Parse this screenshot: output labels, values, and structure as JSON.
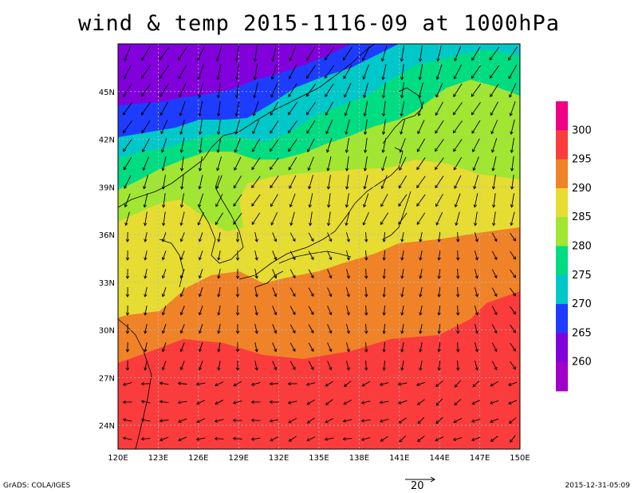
{
  "title": "wind & temp 2015-1116-09 at 1000hPa",
  "map": {
    "lon_range": [
      120,
      150
    ],
    "lat_range": [
      22.5,
      48
    ],
    "lon_ticks": [
      "120E",
      "123E",
      "126E",
      "129E",
      "132E",
      "135E",
      "138E",
      "141E",
      "144E",
      "147E",
      "150E"
    ],
    "lat_ticks": [
      "24N",
      "27N",
      "30N",
      "33N",
      "36N",
      "39N",
      "42N",
      "45N"
    ],
    "grid": "dotted"
  },
  "colorbar": {
    "levels": [
      "260",
      "265",
      "270",
      "275",
      "280",
      "285",
      "290",
      "295",
      "300"
    ],
    "colors": [
      "#a000c8",
      "#8200dc",
      "#1e3cff",
      "#00c8c8",
      "#00dc82",
      "#a0e632",
      "#e6dc32",
      "#f08228",
      "#fa3c3c",
      "#f00082"
    ]
  },
  "reference_vector": {
    "label": "20"
  },
  "footer": {
    "left": "GrADS: COLA/IGES",
    "right": "2015-12-31-05:09"
  }
}
